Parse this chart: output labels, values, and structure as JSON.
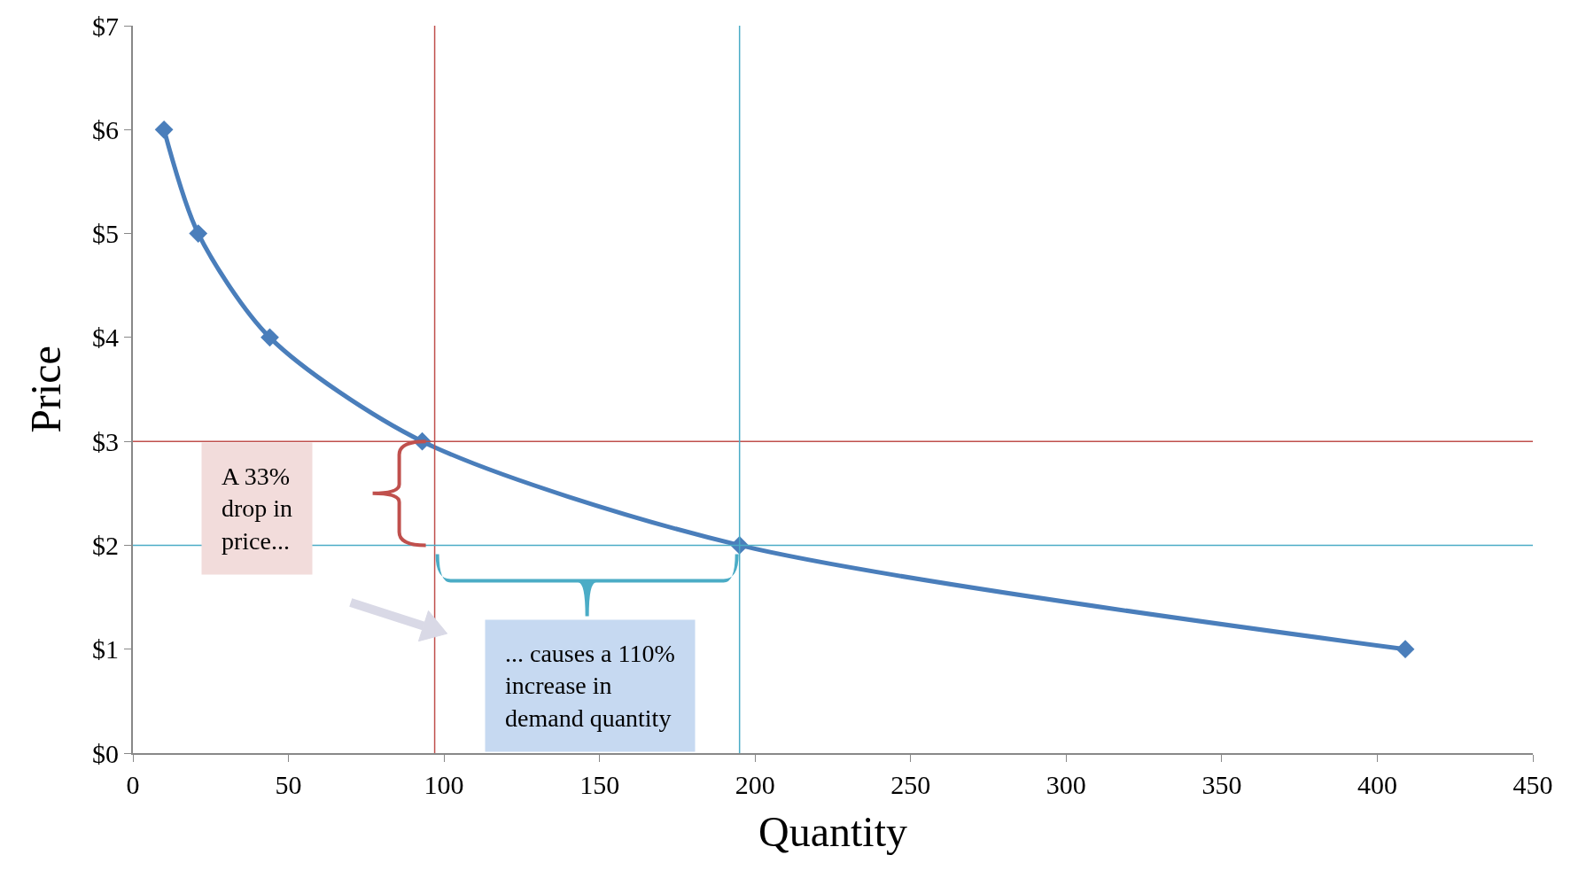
{
  "chart_data": {
    "type": "line",
    "xlabel": "Quantity",
    "ylabel": "Price",
    "x": [
      10,
      21,
      44,
      93,
      195,
      409
    ],
    "values": [
      6,
      5,
      4,
      3,
      2,
      1
    ],
    "color": "#4a7ebb",
    "marker": "diamond",
    "line_style": "solid",
    "grid": false,
    "legend": false,
    "xlim": [
      0,
      450
    ],
    "xticks": [
      0,
      50,
      100,
      150,
      200,
      250,
      300,
      350,
      400,
      450
    ],
    "ylim": [
      0,
      7
    ],
    "yticks": [
      {
        "value": 0,
        "label": "$0"
      },
      {
        "value": 1,
        "label": "$1"
      },
      {
        "value": 2,
        "label": "$2"
      },
      {
        "value": 3,
        "label": "$3"
      },
      {
        "value": 4,
        "label": "$4"
      },
      {
        "value": 5,
        "label": "$5"
      },
      {
        "value": 6,
        "label": "$6"
      },
      {
        "value": 7,
        "label": "$7"
      }
    ],
    "ref_lines": [
      {
        "axis": "y",
        "value": 3,
        "label": null,
        "color": "#c0504d"
      },
      {
        "axis": "x",
        "value": 97,
        "label": null,
        "color": "#c0504d"
      },
      {
        "axis": "y",
        "value": 2,
        "label": null,
        "color": "#4bacc6"
      },
      {
        "axis": "x",
        "value": 195,
        "label": null,
        "color": "#4bacc6"
      }
    ],
    "annotations": [
      "A 33%\ndrop in\nprice...",
      "... causes a 110%\nincrease in\ndemand quantity"
    ]
  }
}
